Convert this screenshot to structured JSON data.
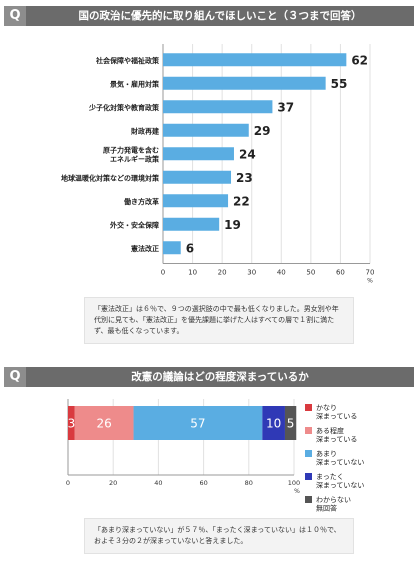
{
  "q_marker": "Q",
  "section1": {
    "title": "国の政治に優先的に取り組んでほしいこと（３つまで回答）",
    "note": "「憲法改正」は６％で、９つの選択肢の中で最も低くなりました。男女別や年代別に見ても、「憲法改正」を優先課題に挙げた人はすべての層で１割に満たず、最も低くなっています。"
  },
  "section2": {
    "title": "改憲の議論はどの程度深まっているか",
    "note": "「あまり深まっていない」が５７％、「まったく深まっていない」は１０％で、およそ３分の２が深まっていないと答えました。"
  },
  "chart_data": [
    {
      "type": "bar",
      "orientation": "horizontal",
      "title": "国の政治に優先的に取り組んでほしいこと（３つまで回答）",
      "categories": [
        [
          "社会保障や福祉政策"
        ],
        [
          "景気・雇用対策"
        ],
        [
          "少子化対策や教育政策"
        ],
        [
          "財政再建"
        ],
        [
          "原子力発電を含む",
          "エネルギー政策"
        ],
        [
          "地球温暖化対策などの環境対策"
        ],
        [
          "働き方改革"
        ],
        [
          "外交・安全保障"
        ],
        [
          "憲法改正"
        ]
      ],
      "values": [
        62,
        55,
        37,
        29,
        24,
        23,
        22,
        19,
        6
      ],
      "xlim": [
        0,
        70
      ],
      "xticks": [
        0,
        10,
        20,
        30,
        40,
        50,
        60,
        70
      ],
      "unit": "%",
      "bar_color": "#5aade2",
      "grid": true
    },
    {
      "type": "bar",
      "orientation": "horizontal",
      "stacked": true,
      "title": "改憲の議論はどの程度深まっているか",
      "xlim": [
        0,
        100
      ],
      "xticks": [
        0,
        20,
        40,
        60,
        80,
        100
      ],
      "unit": "%",
      "legend_position": "right",
      "grid": true,
      "series": [
        {
          "name": [
            "かなり",
            "深まっている"
          ],
          "value": 3,
          "color": "#d93a3f"
        },
        {
          "name": [
            "ある程度",
            "深まっている"
          ],
          "value": 26,
          "color": "#ee8b8b"
        },
        {
          "name": [
            "あまり",
            "深まっていない"
          ],
          "value": 57,
          "color": "#5aade2"
        },
        {
          "name": [
            "まったく",
            "深まっていない"
          ],
          "value": 10,
          "color": "#2f39b6"
        },
        {
          "name": [
            "わからない",
            "無回答"
          ],
          "value": 5,
          "color": "#555555"
        }
      ]
    }
  ]
}
